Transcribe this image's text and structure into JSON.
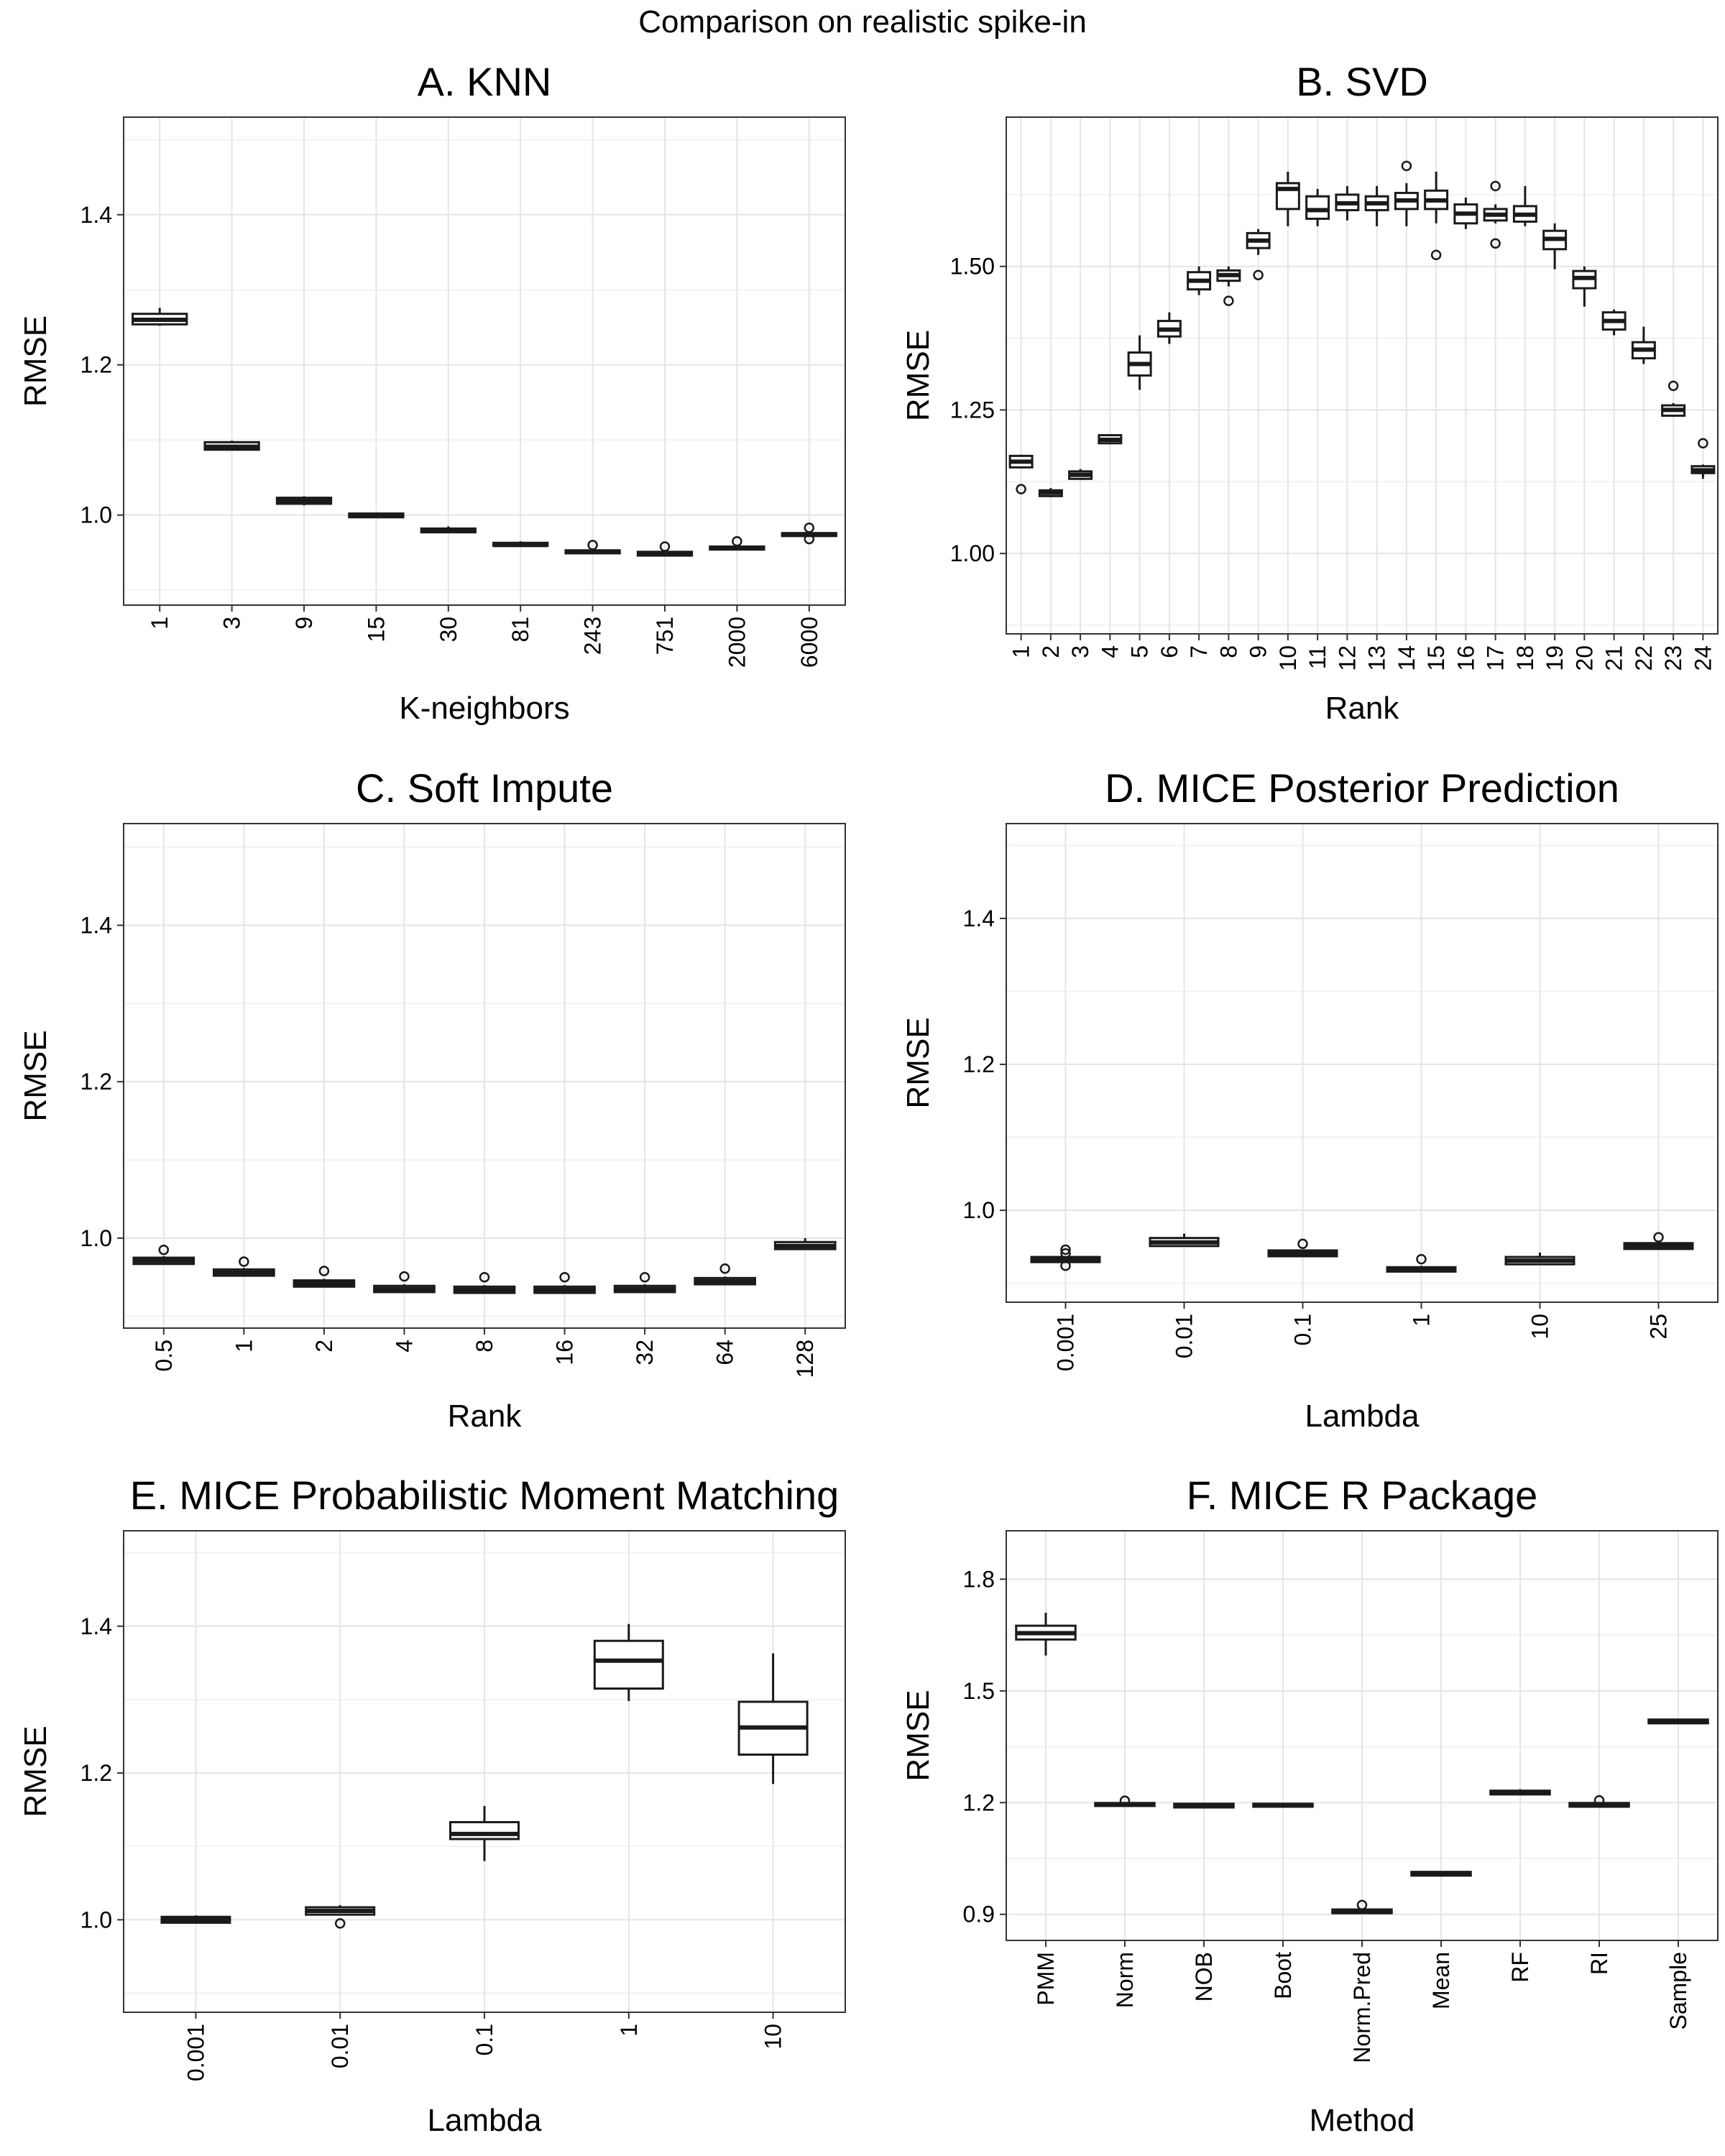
{
  "figure": {
    "title": "Comparison on realistic spike-in"
  },
  "colors": {
    "panel_border": "#333333",
    "grid": "#e5e5e5",
    "box_stroke": "#1a1a1a",
    "box_fill": "#ffffff",
    "text": "#000000"
  },
  "chart_data": [
    {
      "id": "A",
      "type": "box",
      "title": "A. KNN",
      "xlabel": "K-neighbors",
      "ylabel": "RMSE",
      "ylim": [
        0.88,
        1.53
      ],
      "yticks": [
        1.0,
        1.2,
        1.4
      ],
      "ytick_labels": [
        "1.0",
        "1.2",
        "1.4"
      ],
      "xlabel_rotation": 90,
      "categories": [
        "1",
        "3",
        "9",
        "15",
        "30",
        "81",
        "243",
        "751",
        "2000",
        "6000"
      ],
      "boxes": [
        {
          "low": 1.252,
          "q1": 1.254,
          "median": 1.26,
          "q3": 1.268,
          "high": 1.276,
          "outliers": []
        },
        {
          "low": 1.086,
          "q1": 1.087,
          "median": 1.091,
          "q3": 1.097,
          "high": 1.099,
          "outliers": []
        },
        {
          "low": 1.013,
          "q1": 1.015,
          "median": 1.019,
          "q3": 1.023,
          "high": 1.025,
          "outliers": []
        },
        {
          "low": 0.996,
          "q1": 0.997,
          "median": 0.999,
          "q3": 1.002,
          "high": 1.003,
          "outliers": []
        },
        {
          "low": 0.976,
          "q1": 0.977,
          "median": 0.979,
          "q3": 0.982,
          "high": 0.985,
          "outliers": []
        },
        {
          "low": 0.958,
          "q1": 0.959,
          "median": 0.96,
          "q3": 0.963,
          "high": 0.965,
          "outliers": []
        },
        {
          "low": 0.948,
          "q1": 0.949,
          "median": 0.951,
          "q3": 0.953,
          "high": 0.955,
          "outliers": [
            0.96
          ]
        },
        {
          "low": 0.945,
          "q1": 0.946,
          "median": 0.948,
          "q3": 0.951,
          "high": 0.953,
          "outliers": [
            0.958
          ]
        },
        {
          "low": 0.953,
          "q1": 0.954,
          "median": 0.956,
          "q3": 0.958,
          "high": 0.96,
          "outliers": [
            0.965
          ]
        },
        {
          "low": 0.971,
          "q1": 0.972,
          "median": 0.974,
          "q3": 0.976,
          "high": 0.978,
          "outliers": [
            0.983,
            0.968
          ]
        }
      ]
    },
    {
      "id": "B",
      "type": "box",
      "title": "B. SVD",
      "xlabel": "Rank",
      "ylabel": "RMSE",
      "ylim": [
        0.86,
        1.76
      ],
      "yticks": [
        1.0,
        1.25,
        1.5
      ],
      "ytick_labels": [
        "1.00",
        "1.25",
        "1.50"
      ],
      "xlabel_rotation": 90,
      "categories": [
        "1",
        "2",
        "3",
        "4",
        "5",
        "6",
        "7",
        "8",
        "9",
        "10",
        "11",
        "12",
        "13",
        "14",
        "15",
        "16",
        "17",
        "18",
        "19",
        "20",
        "21",
        "22",
        "23",
        "24"
      ],
      "boxes": [
        {
          "low": 1.148,
          "q1": 1.15,
          "median": 1.16,
          "q3": 1.17,
          "high": 1.172,
          "outliers": [
            1.112
          ]
        },
        {
          "low": 1.098,
          "q1": 1.1,
          "median": 1.106,
          "q3": 1.11,
          "high": 1.114,
          "outliers": []
        },
        {
          "low": 1.128,
          "q1": 1.13,
          "median": 1.137,
          "q3": 1.143,
          "high": 1.147,
          "outliers": []
        },
        {
          "low": 1.19,
          "q1": 1.192,
          "median": 1.198,
          "q3": 1.206,
          "high": 1.208,
          "outliers": []
        },
        {
          "low": 1.285,
          "q1": 1.31,
          "median": 1.33,
          "q3": 1.35,
          "high": 1.38,
          "outliers": []
        },
        {
          "low": 1.365,
          "q1": 1.378,
          "median": 1.39,
          "q3": 1.405,
          "high": 1.42,
          "outliers": []
        },
        {
          "low": 1.45,
          "q1": 1.46,
          "median": 1.475,
          "q3": 1.49,
          "high": 1.5,
          "outliers": []
        },
        {
          "low": 1.465,
          "q1": 1.475,
          "median": 1.485,
          "q3": 1.493,
          "high": 1.5,
          "outliers": [
            1.44
          ]
        },
        {
          "low": 1.52,
          "q1": 1.532,
          "median": 1.545,
          "q3": 1.558,
          "high": 1.565,
          "outliers": [
            1.485
          ]
        },
        {
          "low": 1.57,
          "q1": 1.6,
          "median": 1.635,
          "q3": 1.645,
          "high": 1.665,
          "outliers": []
        },
        {
          "low": 1.57,
          "q1": 1.583,
          "median": 1.598,
          "q3": 1.622,
          "high": 1.635,
          "outliers": []
        },
        {
          "low": 1.58,
          "q1": 1.598,
          "median": 1.61,
          "q3": 1.625,
          "high": 1.64,
          "outliers": []
        },
        {
          "low": 1.57,
          "q1": 1.598,
          "median": 1.61,
          "q3": 1.622,
          "high": 1.64,
          "outliers": []
        },
        {
          "low": 1.57,
          "q1": 1.6,
          "median": 1.615,
          "q3": 1.628,
          "high": 1.645,
          "outliers": [
            1.675
          ]
        },
        {
          "low": 1.575,
          "q1": 1.6,
          "median": 1.615,
          "q3": 1.632,
          "high": 1.665,
          "outliers": [
            1.52
          ]
        },
        {
          "low": 1.565,
          "q1": 1.575,
          "median": 1.592,
          "q3": 1.608,
          "high": 1.62,
          "outliers": []
        },
        {
          "low": 1.575,
          "q1": 1.58,
          "median": 1.59,
          "q3": 1.6,
          "high": 1.608,
          "outliers": [
            1.64,
            1.54
          ]
        },
        {
          "low": 1.57,
          "q1": 1.578,
          "median": 1.59,
          "q3": 1.605,
          "high": 1.64,
          "outliers": []
        },
        {
          "low": 1.495,
          "q1": 1.53,
          "median": 1.548,
          "q3": 1.562,
          "high": 1.575,
          "outliers": []
        },
        {
          "low": 1.43,
          "q1": 1.462,
          "median": 1.48,
          "q3": 1.492,
          "high": 1.5,
          "outliers": []
        },
        {
          "low": 1.38,
          "q1": 1.39,
          "median": 1.405,
          "q3": 1.42,
          "high": 1.425,
          "outliers": []
        },
        {
          "low": 1.33,
          "q1": 1.34,
          "median": 1.355,
          "q3": 1.368,
          "high": 1.395,
          "outliers": []
        },
        {
          "low": 1.238,
          "q1": 1.24,
          "median": 1.25,
          "q3": 1.258,
          "high": 1.262,
          "outliers": [
            1.292
          ]
        },
        {
          "low": 1.13,
          "q1": 1.14,
          "median": 1.145,
          "q3": 1.152,
          "high": 1.155,
          "outliers": [
            1.192
          ]
        }
      ]
    },
    {
      "id": "C",
      "type": "box",
      "title": "C. Soft Impute",
      "xlabel": "Rank",
      "ylabel": "RMSE",
      "ylim": [
        0.885,
        1.53
      ],
      "yticks": [
        1.0,
        1.2,
        1.4
      ],
      "ytick_labels": [
        "1.0",
        "1.2",
        "1.4"
      ],
      "xlabel_rotation": 90,
      "categories": [
        "0.5",
        "1",
        "2",
        "4",
        "8",
        "16",
        "32",
        "64",
        "128"
      ],
      "boxes": [
        {
          "low": 0.966,
          "q1": 0.967,
          "median": 0.971,
          "q3": 0.975,
          "high": 0.977,
          "outliers": [
            0.985
          ]
        },
        {
          "low": 0.951,
          "q1": 0.952,
          "median": 0.956,
          "q3": 0.96,
          "high": 0.962,
          "outliers": [
            0.97
          ]
        },
        {
          "low": 0.937,
          "q1": 0.938,
          "median": 0.942,
          "q3": 0.946,
          "high": 0.948,
          "outliers": [
            0.958
          ]
        },
        {
          "low": 0.93,
          "q1": 0.931,
          "median": 0.935,
          "q3": 0.939,
          "high": 0.941,
          "outliers": [
            0.951
          ]
        },
        {
          "low": 0.929,
          "q1": 0.93,
          "median": 0.934,
          "q3": 0.938,
          "high": 0.94,
          "outliers": [
            0.95
          ]
        },
        {
          "low": 0.929,
          "q1": 0.93,
          "median": 0.934,
          "q3": 0.938,
          "high": 0.94,
          "outliers": [
            0.95
          ]
        },
        {
          "low": 0.93,
          "q1": 0.931,
          "median": 0.935,
          "q3": 0.939,
          "high": 0.941,
          "outliers": [
            0.95
          ]
        },
        {
          "low": 0.94,
          "q1": 0.941,
          "median": 0.945,
          "q3": 0.949,
          "high": 0.951,
          "outliers": [
            0.961
          ]
        },
        {
          "low": 0.985,
          "q1": 0.986,
          "median": 0.99,
          "q3": 0.995,
          "high": 1.0,
          "outliers": []
        }
      ]
    },
    {
      "id": "D",
      "type": "box",
      "title": "D. MICE Posterior Prediction",
      "xlabel": "Lambda",
      "ylabel": "RMSE",
      "ylim": [
        0.874,
        1.53
      ],
      "yticks": [
        1.0,
        1.2,
        1.4
      ],
      "ytick_labels": [
        "1.0",
        "1.2",
        "1.4"
      ],
      "xlabel_rotation": 90,
      "categories": [
        "0.001",
        "0.01",
        "0.1",
        "1",
        "10",
        "25"
      ],
      "boxes": [
        {
          "low": 0.928,
          "q1": 0.929,
          "median": 0.933,
          "q3": 0.936,
          "high": 0.937,
          "outliers": [
            0.946,
            0.941,
            0.924
          ]
        },
        {
          "low": 0.95,
          "q1": 0.951,
          "median": 0.956,
          "q3": 0.962,
          "high": 0.968,
          "outliers": []
        },
        {
          "low": 0.936,
          "q1": 0.937,
          "median": 0.941,
          "q3": 0.945,
          "high": 0.946,
          "outliers": [
            0.954
          ]
        },
        {
          "low": 0.915,
          "q1": 0.916,
          "median": 0.919,
          "q3": 0.922,
          "high": 0.924,
          "outliers": [
            0.933
          ]
        },
        {
          "low": 0.925,
          "q1": 0.926,
          "median": 0.931,
          "q3": 0.936,
          "high": 0.942,
          "outliers": []
        },
        {
          "low": 0.946,
          "q1": 0.947,
          "median": 0.951,
          "q3": 0.955,
          "high": 0.956,
          "outliers": [
            0.963
          ]
        }
      ]
    },
    {
      "id": "E",
      "type": "box",
      "title": "E. MICE Probabilistic Moment Matching",
      "xlabel": "Lambda",
      "ylabel": "RMSE",
      "ylim": [
        0.874,
        1.53
      ],
      "yticks": [
        1.0,
        1.2,
        1.4
      ],
      "ytick_labels": [
        "1.0",
        "1.2",
        "1.4"
      ],
      "xlabel_rotation": 90,
      "categories": [
        "0.001",
        "0.01",
        "0.1",
        "1",
        "10"
      ],
      "boxes": [
        {
          "low": 0.995,
          "q1": 0.996,
          "median": 1.0,
          "q3": 1.004,
          "high": 1.006,
          "outliers": []
        },
        {
          "low": 1.006,
          "q1": 1.007,
          "median": 1.012,
          "q3": 1.017,
          "high": 1.02,
          "outliers": [
            0.995
          ]
        },
        {
          "low": 1.08,
          "q1": 1.11,
          "median": 1.117,
          "q3": 1.133,
          "high": 1.155,
          "outliers": []
        },
        {
          "low": 1.298,
          "q1": 1.315,
          "median": 1.353,
          "q3": 1.38,
          "high": 1.403,
          "outliers": []
        },
        {
          "low": 1.185,
          "q1": 1.225,
          "median": 1.262,
          "q3": 1.297,
          "high": 1.363,
          "outliers": []
        }
      ]
    },
    {
      "id": "F",
      "type": "box",
      "title": "F. MICE R Package",
      "xlabel": "Method",
      "ylabel": "RMSE",
      "ylim": [
        0.83,
        1.93
      ],
      "yticks": [
        0.9,
        1.2,
        1.5,
        1.8
      ],
      "ytick_labels": [
        "0.9",
        "1.2",
        "1.5",
        "1.8"
      ],
      "xlabel_rotation": 90,
      "categories": [
        "PMM",
        "Norm",
        "NOB",
        "Boot",
        "Norm.Pred",
        "Mean",
        "RF",
        "RI",
        "Sample"
      ],
      "boxes": [
        {
          "low": 1.595,
          "q1": 1.638,
          "median": 1.655,
          "q3": 1.675,
          "high": 1.71,
          "outliers": []
        },
        {
          "low": 1.19,
          "q1": 1.191,
          "median": 1.195,
          "q3": 1.199,
          "high": 1.2,
          "outliers": [
            1.205
          ]
        },
        {
          "low": 1.186,
          "q1": 1.187,
          "median": 1.192,
          "q3": 1.197,
          "high": 1.198,
          "outliers": []
        },
        {
          "low": 1.188,
          "q1": 1.189,
          "median": 1.193,
          "q3": 1.197,
          "high": 1.198,
          "outliers": []
        },
        {
          "low": 0.902,
          "q1": 0.903,
          "median": 0.908,
          "q3": 0.913,
          "high": 0.915,
          "outliers": [
            0.925
          ]
        },
        {
          "low": 1.003,
          "q1": 1.004,
          "median": 1.009,
          "q3": 1.014,
          "high": 1.015,
          "outliers": []
        },
        {
          "low": 1.221,
          "q1": 1.222,
          "median": 1.227,
          "q3": 1.232,
          "high": 1.236,
          "outliers": []
        },
        {
          "low": 1.188,
          "q1": 1.189,
          "median": 1.194,
          "q3": 1.199,
          "high": 1.2,
          "outliers": [
            1.206
          ]
        },
        {
          "low": 1.412,
          "q1": 1.413,
          "median": 1.418,
          "q3": 1.423,
          "high": 1.425,
          "outliers": []
        }
      ]
    }
  ]
}
